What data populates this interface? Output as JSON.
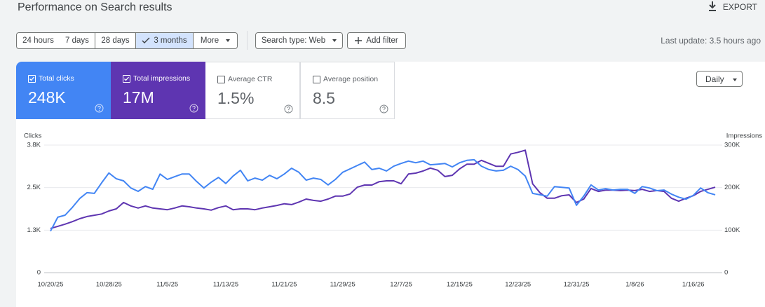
{
  "header": {
    "title": "Performance on Search results",
    "export": "EXPORT"
  },
  "filters": {
    "date_ranges": [
      "24 hours",
      "7 days",
      "28 days",
      "3 months",
      "More"
    ],
    "search_type": "Search type: Web",
    "add_filter": "Add filter",
    "last_update": "Last update: 3.5 hours ago"
  },
  "metrics": [
    {
      "label": "Total clicks",
      "value": "248K",
      "selected": true,
      "color": "#4285f4"
    },
    {
      "label": "Total impressions",
      "value": "17M",
      "selected": true,
      "color": "#5e35b1"
    },
    {
      "label": "Average CTR",
      "value": "1.5%",
      "selected": false,
      "color": "#ffffff"
    },
    {
      "label": "Average position",
      "value": "8.5",
      "selected": false,
      "color": "#ffffff"
    }
  ],
  "granularity": "Daily",
  "chart_data": {
    "type": "line",
    "y_label": "Clicks",
    "y2_label": "Impressions",
    "categories": [
      "10/20/25",
      null,
      null,
      null,
      null,
      null,
      null,
      null,
      "10/28/25",
      null,
      null,
      null,
      null,
      null,
      null,
      null,
      "11/5/25",
      null,
      null,
      null,
      null,
      null,
      null,
      null,
      "11/13/25",
      null,
      null,
      null,
      null,
      null,
      null,
      null,
      "11/21/25",
      null,
      null,
      null,
      null,
      null,
      null,
      null,
      "11/29/25",
      null,
      null,
      null,
      null,
      null,
      null,
      null,
      "12/7/25",
      null,
      null,
      null,
      null,
      null,
      null,
      null,
      "12/15/25",
      null,
      null,
      null,
      null,
      null,
      null,
      null,
      "12/23/25",
      null,
      null,
      null,
      null,
      null,
      null,
      null,
      "12/31/25",
      null,
      null,
      null,
      null,
      null,
      null,
      null,
      "1/8/26",
      null,
      null,
      null,
      null,
      null,
      null,
      null,
      "1/16/26",
      null,
      null,
      null
    ],
    "series": [
      {
        "name": "Clicks",
        "color": "#4285f4",
        "values": [
          1220,
          1630,
          1690,
          1920,
          2180,
          2350,
          2330,
          2640,
          2930,
          2760,
          2700,
          2490,
          2390,
          2530,
          2450,
          2900,
          2740,
          2820,
          2900,
          2900,
          2680,
          2490,
          2660,
          2800,
          2620,
          2840,
          3010,
          2700,
          2780,
          2720,
          2860,
          2760,
          2900,
          3070,
          2950,
          2720,
          2780,
          2740,
          2580,
          2740,
          2950,
          3050,
          3150,
          3250,
          3030,
          3070,
          2990,
          3130,
          3210,
          3280,
          3230,
          3280,
          3170,
          3190,
          3210,
          3110,
          3230,
          3300,
          3320,
          3130,
          3030,
          2990,
          3010,
          3130,
          3030,
          2840,
          2330,
          2290,
          2250,
          2530,
          2510,
          2490,
          1980,
          2250,
          2580,
          2430,
          2470,
          2430,
          2450,
          2450,
          2330,
          2530,
          2490,
          2410,
          2430,
          2310,
          2220,
          2160,
          2270,
          2490,
          2350,
          2290
        ]
      },
      {
        "name": "Impressions",
        "color": "#5e35b1",
        "axis": "y2",
        "values": [
          104000,
          109000,
          114000,
          120000,
          127000,
          132000,
          135000,
          138000,
          145000,
          150000,
          165000,
          157000,
          152000,
          157000,
          152000,
          150000,
          148000,
          152000,
          157000,
          155000,
          152000,
          150000,
          147000,
          153000,
          157000,
          148000,
          150000,
          150000,
          148000,
          152000,
          155000,
          158000,
          162000,
          160000,
          166000,
          173000,
          170000,
          168000,
          173000,
          180000,
          180000,
          185000,
          201000,
          206000,
          206000,
          214000,
          216000,
          216000,
          209000,
          232000,
          234000,
          239000,
          246000,
          241000,
          226000,
          229000,
          244000,
          255000,
          255000,
          264000,
          257000,
          250000,
          250000,
          279000,
          283000,
          288000,
          209000,
          188000,
          175000,
          175000,
          181000,
          183000,
          165000,
          173000,
          198000,
          191000,
          194000,
          194000,
          193000,
          194000,
          193000,
          196000,
          191000,
          193000,
          191000,
          175000,
          168000,
          175000,
          181000,
          191000,
          196000,
          201000
        ]
      }
    ],
    "ylim": [
      0,
      3750
    ],
    "yticks": [
      0,
      {
        "value": 1250,
        "label": "1.3K"
      },
      {
        "value": 2500,
        "label": "2.5K"
      },
      {
        "value": 3750,
        "label": "3.8K"
      }
    ],
    "y2lim": [
      0,
      300000
    ],
    "y2ticks": [
      0,
      {
        "value": 100000,
        "label": "100K"
      },
      {
        "value": 200000,
        "label": "200K"
      },
      {
        "value": 300000,
        "label": "300K"
      }
    ],
    "grid": true
  }
}
